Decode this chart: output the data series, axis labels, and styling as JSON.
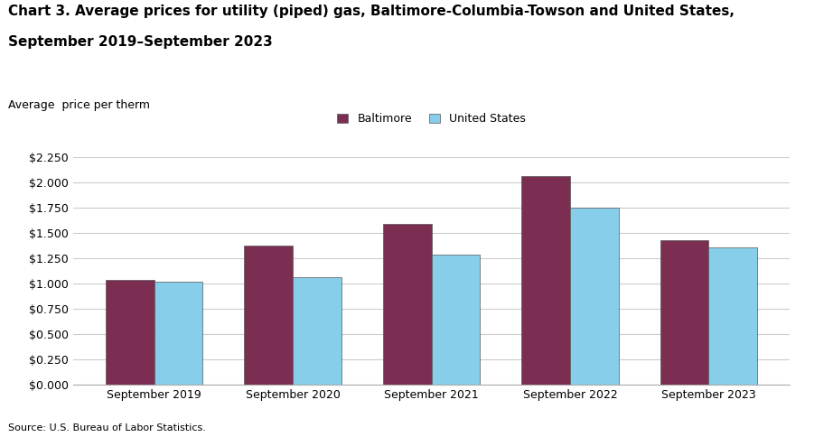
{
  "title_line1": "Chart 3. Average prices for utility (piped) gas, Baltimore-Columbia-Towson and United States,",
  "title_line2": "September 2019–September 2023",
  "ylabel": "Average  price per therm",
  "source": "Source: U.S. Bureau of Labor Statistics.",
  "categories": [
    "September 2019",
    "September 2020",
    "September 2021",
    "September 2022",
    "September 2023"
  ],
  "baltimore": [
    1.034,
    1.375,
    1.594,
    2.063,
    1.432
  ],
  "us": [
    1.02,
    1.065,
    1.29,
    1.749,
    1.354
  ],
  "baltimore_color": "#7b2d52",
  "us_color": "#87CEEB",
  "bar_edge_color": "#555555",
  "legend_labels": [
    "Baltimore",
    "United States"
  ],
  "ylim": [
    0,
    2.25
  ],
  "yticks": [
    0.0,
    0.25,
    0.5,
    0.75,
    1.0,
    1.25,
    1.5,
    1.75,
    2.0,
    2.25
  ],
  "title_fontsize": 11,
  "axis_label_fontsize": 9,
  "tick_fontsize": 9,
  "legend_fontsize": 9,
  "source_fontsize": 8,
  "bar_width": 0.35,
  "grid_color": "#cccccc",
  "background_color": "#ffffff"
}
